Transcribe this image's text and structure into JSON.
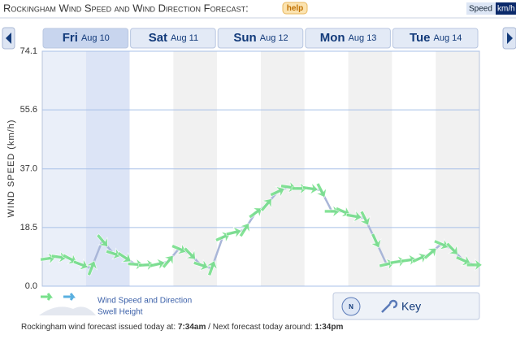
{
  "chart_data": {
    "type": "line",
    "title": "Rockingham Wind Speed and Wind Direction Forecast:",
    "help": "help",
    "unit_toggle": [
      "Speed",
      "km/h"
    ],
    "ylabel": "WIND SPEED (km/h)",
    "days": [
      {
        "name": "Fri",
        "date": "Aug 10"
      },
      {
        "name": "Sat",
        "date": "Aug 11"
      },
      {
        "name": "Sun",
        "date": "Aug 12"
      },
      {
        "name": "Mon",
        "date": "Aug 13"
      },
      {
        "name": "Tue",
        "date": "Aug 14"
      }
    ],
    "selected_day": 0,
    "series": [
      {
        "name": "Wind Speed and Direction",
        "color": "#78e08c",
        "values": [
          8.7,
          9.2,
          8.7,
          6.9,
          5.6,
          14.4,
          10.3,
          9.2,
          6.9,
          6.7,
          6.9,
          7.7,
          11.8,
          10.3,
          6.7,
          5.6,
          15.4,
          16.9,
          17.7,
          23.1,
          25.6,
          29.7,
          31.3,
          30.8,
          30.8,
          30.3,
          23.6,
          23.6,
          22.1,
          21.5,
          14.4,
          6.9,
          7.7,
          8.2,
          8.7,
          10.3,
          13.3,
          11.8,
          8.2,
          6.7
        ]
      }
    ],
    "swell_legend": "Swell Height",
    "ylim": [
      0,
      74.1
    ],
    "yticks": [
      {
        "value": 0,
        "label": "0.0"
      },
      18.5,
      {
        "value": 37,
        "label": "37.0"
      },
      55.6,
      74.1
    ],
    "grid": true,
    "key_button": "Key",
    "footer": {
      "issued_text": "Rockingham wind forecast issued today at:",
      "issued_time": "7:34am",
      "next_text": "/ Next forecast today around:",
      "next_time": "1:34pm"
    }
  }
}
